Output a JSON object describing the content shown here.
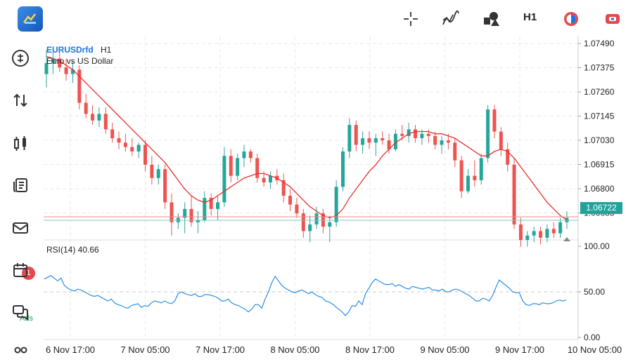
{
  "toolbar": {
    "timeframe": "H1",
    "icons": [
      "crosshair-icon",
      "indicators-icon",
      "objects-icon",
      "timeframe-h1",
      "trade-icon",
      "account-icon"
    ]
  },
  "sidebar": {
    "items": [
      "quotes",
      "trade",
      "chart",
      "history",
      "messages",
      "calendar",
      "chat",
      "community"
    ],
    "messages_badge": "1",
    "ads_label": "Ads"
  },
  "chart": {
    "symbol": "EURUSDrfd",
    "symbol_dropdown": "▾",
    "timeframe": "H1",
    "description": "Euro vs US Dollar",
    "current_price": "1.06722",
    "price_ticks": [
      "1.07490",
      "1.07375",
      "1.07260",
      "1.07145",
      "1.07030",
      "1.06915",
      "1.06800",
      "1.06685"
    ],
    "time_ticks": [
      "6 Nov 17:00",
      "7 Nov 05:00",
      "7 Nov 17:00",
      "8 Nov 05:00",
      "8 Nov 17:00",
      "9 Nov 05:00",
      "9 Nov 17:00",
      "10 Nov 05:00"
    ],
    "rsi_label": "RSI(14) 40.66",
    "rsi_ticks": [
      "100.00",
      "50.00",
      "0.00"
    ],
    "colors": {
      "bull": "#26a69a",
      "bear": "#ef5350",
      "ma": "#e53030",
      "rsi": "#2a8ee8",
      "grid": "#e8e8e8"
    }
  },
  "chart_data": {
    "type": "candlestick",
    "ylim": [
      1.0663,
      1.0755
    ],
    "candles": [
      [
        1.0738,
        1.0749,
        1.0732,
        1.0743
      ],
      [
        1.0743,
        1.0748,
        1.0738,
        1.0745
      ],
      [
        1.0745,
        1.0749,
        1.0739,
        1.0741
      ],
      [
        1.0741,
        1.0745,
        1.0735,
        1.0738
      ],
      [
        1.0738,
        1.0744,
        1.0734,
        1.074
      ],
      [
        1.074,
        1.0742,
        1.0722,
        1.0725
      ],
      [
        1.0725,
        1.0729,
        1.0718,
        1.072
      ],
      [
        1.072,
        1.0724,
        1.0715,
        1.0717
      ],
      [
        1.0717,
        1.0723,
        1.0714,
        1.072
      ],
      [
        1.072,
        1.0723,
        1.0711,
        1.0713
      ],
      [
        1.0713,
        1.0716,
        1.0707,
        1.0709
      ],
      [
        1.0709,
        1.0712,
        1.0704,
        1.0707
      ],
      [
        1.0707,
        1.0711,
        1.0703,
        1.0705
      ],
      [
        1.0705,
        1.0709,
        1.0701,
        1.0703
      ],
      [
        1.0703,
        1.0707,
        1.07,
        1.0706
      ],
      [
        1.0706,
        1.0708,
        1.0694,
        1.0697
      ],
      [
        1.0697,
        1.0701,
        1.0688,
        1.0691
      ],
      [
        1.0691,
        1.0697,
        1.0688,
        1.0695
      ],
      [
        1.0695,
        1.0697,
        1.0677,
        1.068
      ],
      [
        1.068,
        1.0684,
        1.0665,
        1.0671
      ],
      [
        1.0671,
        1.0675,
        1.0668,
        1.0673
      ],
      [
        1.0673,
        1.068,
        1.0666,
        1.0677
      ],
      [
        1.0677,
        1.0683,
        1.0669,
        1.0671
      ],
      [
        1.0671,
        1.0676,
        1.0666,
        1.0672
      ],
      [
        1.0672,
        1.0685,
        1.0671,
        1.0682
      ],
      [
        1.0682,
        1.0684,
        1.0674,
        1.0677
      ],
      [
        1.0677,
        1.0683,
        1.0672,
        1.068
      ],
      [
        1.068,
        1.0705,
        1.0678,
        1.0701
      ],
      [
        1.0701,
        1.0704,
        1.0689,
        1.0692
      ],
      [
        1.0692,
        1.0702,
        1.069,
        1.07
      ],
      [
        1.07,
        1.0706,
        1.0696,
        1.0703
      ],
      [
        1.0703,
        1.0704,
        1.0698,
        1.07
      ],
      [
        1.07,
        1.0702,
        1.0689,
        1.0691
      ],
      [
        1.0691,
        1.0694,
        1.0687,
        1.0689
      ],
      [
        1.0689,
        1.0694,
        1.0686,
        1.0692
      ],
      [
        1.0692,
        1.0695,
        1.0688,
        1.069
      ],
      [
        1.069,
        1.0693,
        1.068,
        1.0683
      ],
      [
        1.0683,
        1.0686,
        1.0676,
        1.0679
      ],
      [
        1.0679,
        1.0682,
        1.0673,
        1.0675
      ],
      [
        1.0675,
        1.0677,
        1.0664,
        1.0667
      ],
      [
        1.0667,
        1.0674,
        1.0662,
        1.067
      ],
      [
        1.067,
        1.0678,
        1.0668,
        1.0675
      ],
      [
        1.0675,
        1.0677,
        1.0666,
        1.0669
      ],
      [
        1.0669,
        1.0674,
        1.0662,
        1.0671
      ],
      [
        1.0671,
        1.069,
        1.0669,
        1.0687
      ],
      [
        1.0687,
        1.0705,
        1.0685,
        1.0703
      ],
      [
        1.0703,
        1.0718,
        1.07,
        1.0715
      ],
      [
        1.0715,
        1.0717,
        1.0703,
        1.0706
      ],
      [
        1.0706,
        1.0712,
        1.0702,
        1.0709
      ],
      [
        1.0709,
        1.0712,
        1.0704,
        1.0707
      ],
      [
        1.0707,
        1.0711,
        1.0701,
        1.0709
      ],
      [
        1.0709,
        1.0712,
        1.0706,
        1.0708
      ],
      [
        1.0708,
        1.0711,
        1.0702,
        1.0704
      ],
      [
        1.0704,
        1.0713,
        1.0703,
        1.0711
      ],
      [
        1.0711,
        1.0715,
        1.0708,
        1.071
      ],
      [
        1.071,
        1.0716,
        1.0707,
        1.0713
      ],
      [
        1.0713,
        1.0715,
        1.0707,
        1.0709
      ],
      [
        1.0709,
        1.0713,
        1.0706,
        1.0711
      ],
      [
        1.0711,
        1.0713,
        1.0707,
        1.071
      ],
      [
        1.071,
        1.0712,
        1.0704,
        1.0706
      ],
      [
        1.0706,
        1.071,
        1.0702,
        1.0708
      ],
      [
        1.0708,
        1.0711,
        1.0704,
        1.0707
      ],
      [
        1.0707,
        1.0709,
        1.0696,
        1.0699
      ],
      [
        1.0699,
        1.0701,
        1.0682,
        1.0685
      ],
      [
        1.0685,
        1.0695,
        1.0684,
        1.0692
      ],
      [
        1.0692,
        1.0699,
        1.0687,
        1.069
      ],
      [
        1.069,
        1.0702,
        1.0688,
        1.07
      ],
      [
        1.07,
        1.0724,
        1.0698,
        1.0722
      ],
      [
        1.0722,
        1.0724,
        1.0709,
        1.0712
      ],
      [
        1.0712,
        1.0714,
        1.0701,
        1.0704
      ],
      [
        1.0704,
        1.0707,
        1.0694,
        1.0697
      ],
      [
        1.0697,
        1.07,
        1.0668,
        1.067
      ],
      [
        1.067,
        1.0673,
        1.066,
        1.0663
      ],
      [
        1.0663,
        1.0667,
        1.066,
        1.0665
      ],
      [
        1.0665,
        1.0669,
        1.0662,
        1.0667
      ],
      [
        1.0667,
        1.0669,
        1.0661,
        1.0664
      ],
      [
        1.0664,
        1.067,
        1.0662,
        1.0668
      ],
      [
        1.0668,
        1.0671,
        1.0664,
        1.0666
      ],
      [
        1.0666,
        1.0673,
        1.0664,
        1.0671
      ],
      [
        1.0671,
        1.0676,
        1.0668,
        1.0673
      ]
    ],
    "ma": [
      1.0746,
      1.0745,
      1.0744,
      1.0742,
      1.074,
      1.0737,
      1.0734,
      1.0731,
      1.0728,
      1.0725,
      1.0722,
      1.0719,
      1.0716,
      1.0713,
      1.071,
      1.0707,
      1.0704,
      1.0701,
      1.0698,
      1.0694,
      1.069,
      1.0686,
      1.0683,
      1.0681,
      1.068,
      1.0681,
      1.0683,
      1.0685,
      1.0687,
      1.0689,
      1.0691,
      1.0692,
      1.0693,
      1.0693,
      1.0692,
      1.0691,
      1.0689,
      1.0687,
      1.0684,
      1.0681,
      1.0678,
      1.0676,
      1.0674,
      1.0673,
      1.0674,
      1.0677,
      1.0682,
      1.0686,
      1.069,
      1.0694,
      1.0697,
      1.0701,
      1.0704,
      1.0707,
      1.0709,
      1.0711,
      1.0712,
      1.0712,
      1.0712,
      1.0711,
      1.0711,
      1.071,
      1.0709,
      1.0707,
      1.0705,
      1.0703,
      1.0701,
      1.0701,
      1.0703,
      1.0704,
      1.0703,
      1.07,
      1.0696,
      1.0692,
      1.0688,
      1.0684,
      1.068,
      1.0677,
      1.0674,
      1.0672
    ],
    "rsi": [
      64,
      66,
      68,
      65,
      62,
      65,
      57,
      54,
      52,
      51,
      53,
      52,
      50,
      48,
      46,
      45,
      46,
      44,
      42,
      40,
      42,
      38,
      36,
      35,
      33,
      32,
      35,
      36,
      37,
      33,
      35,
      34,
      38,
      40,
      39,
      38,
      40,
      38,
      37,
      40,
      48,
      50,
      48,
      47,
      46,
      48,
      45,
      45,
      47,
      47,
      46,
      45,
      43,
      40,
      40,
      42,
      38,
      36,
      35,
      33,
      31,
      28,
      31,
      36,
      36,
      32,
      42,
      50,
      60,
      67,
      62,
      57,
      54,
      52,
      50,
      49,
      51,
      52,
      50,
      48,
      50,
      47,
      45,
      44,
      40,
      39,
      37,
      34,
      31,
      28,
      24,
      28,
      35,
      34,
      40,
      36,
      48,
      54,
      60,
      64,
      62,
      60,
      58,
      58,
      59,
      56,
      58,
      56,
      54,
      53,
      56,
      55,
      54,
      53,
      54,
      55,
      52,
      52,
      51,
      53,
      50,
      50,
      52,
      53,
      52,
      50,
      48,
      46,
      43,
      40,
      40,
      43,
      42,
      40,
      46,
      55,
      63,
      60,
      57,
      54,
      50,
      49,
      49,
      40,
      36,
      35,
      37,
      37,
      36,
      38,
      37,
      37,
      38,
      40,
      41,
      40,
      41
    ]
  }
}
